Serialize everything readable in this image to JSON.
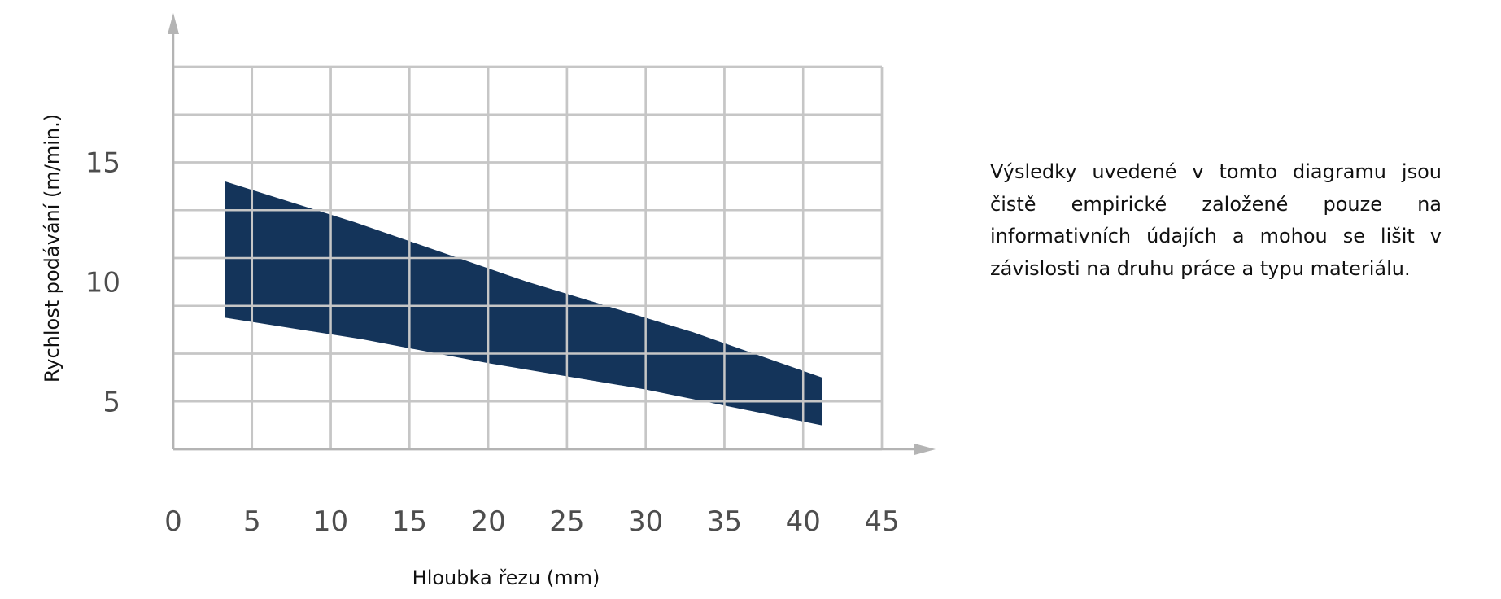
{
  "chart_data": {
    "type": "area",
    "xlabel": "Hloubka řezu (mm)",
    "ylabel": "Rychlost podávání (m/min.)",
    "x_ticks": [
      "0",
      "5",
      "10",
      "15",
      "20",
      "25",
      "30",
      "35",
      "40",
      "45"
    ],
    "y_ticks": [
      "5",
      "10",
      "15"
    ],
    "xlim": [
      0,
      45
    ],
    "ylim": [
      3,
      19
    ],
    "grid": true,
    "band": {
      "upper": [
        {
          "x": 3.3,
          "y": 14.2
        },
        {
          "x": 11.5,
          "y": 12.5
        },
        {
          "x": 22.5,
          "y": 10.0
        },
        {
          "x": 33,
          "y": 7.9
        },
        {
          "x": 41.2,
          "y": 6.0
        }
      ],
      "lower": [
        {
          "x": 3.3,
          "y": 8.5
        },
        {
          "x": 12,
          "y": 7.6
        },
        {
          "x": 20,
          "y": 6.6
        },
        {
          "x": 30,
          "y": 5.5
        },
        {
          "x": 41.2,
          "y": 4.0
        }
      ]
    },
    "colors": {
      "band": "#14345a",
      "grid": "#c6c6c6",
      "axis": "#b4b4b4",
      "tick": "#4d4d4d"
    }
  },
  "note": "Výsledky uvedené v tomto diagramu jsou čistě empirické založené pouze na informativních údajích a mohou se lišit v závislosti na druhu práce a typu materiálu."
}
